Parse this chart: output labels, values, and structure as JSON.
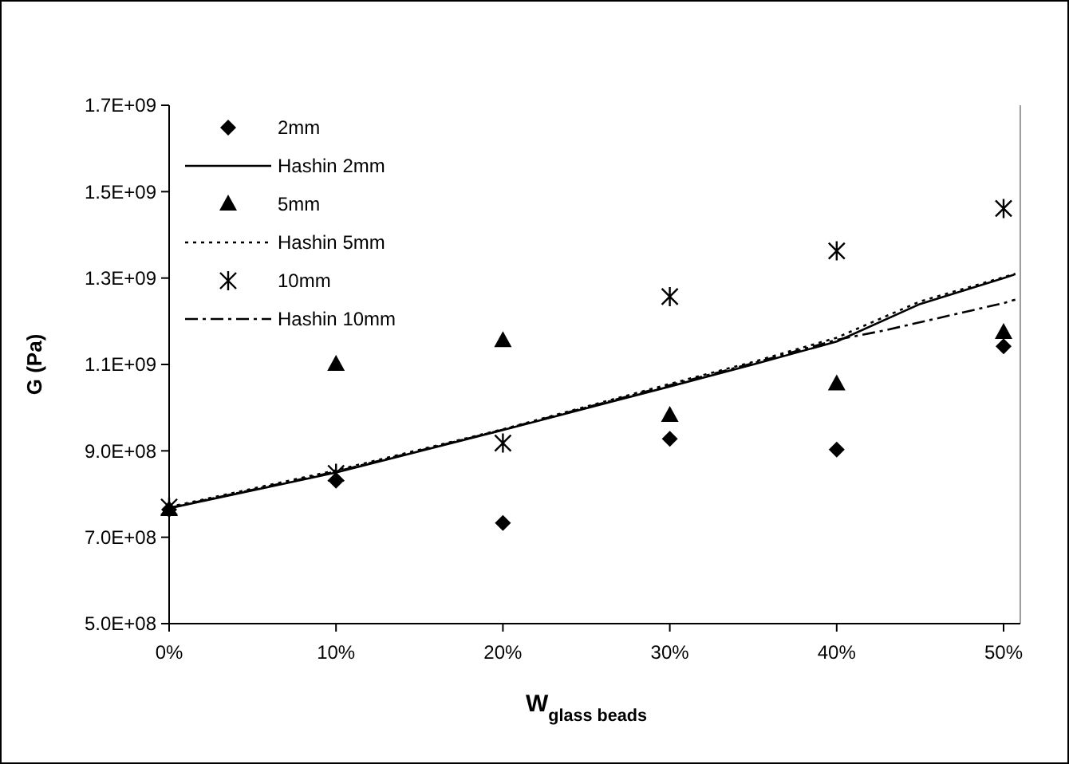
{
  "chart_data": {
    "type": "scatter",
    "xlabel": "W$_{glass beads}$",
    "ylabel": "G (Pa)",
    "xlim": [
      0,
      51
    ],
    "xticks": [
      {
        "value": 0,
        "label": "0%"
      },
      {
        "value": 10,
        "label": "10%"
      },
      {
        "value": 20,
        "label": "20%"
      },
      {
        "value": 30,
        "label": "30%"
      },
      {
        "value": 40,
        "label": "40%"
      },
      {
        "value": 50,
        "label": "50%"
      }
    ],
    "ylim": [
      500000000,
      1700000000
    ],
    "yticks": [
      {
        "value": 500000000,
        "label": "5.0E+08"
      },
      {
        "value": 700000000,
        "label": "7.0E+08"
      },
      {
        "value": 900000000,
        "label": "9.0E+08"
      },
      {
        "value": 1100000000,
        "label": "1.1E+09"
      },
      {
        "value": 1300000000,
        "label": "1.3E+09"
      },
      {
        "value": 1500000000,
        "label": "1.5E+09"
      },
      {
        "value": 1700000000,
        "label": "1.7E+09"
      }
    ],
    "grid": false,
    "legend": "top left",
    "series": [
      {
        "name": "2mm",
        "marker": "diamond",
        "color": "#000000",
        "x": [
          0,
          10,
          20,
          30,
          40,
          50
        ],
        "values": [
          764000000,
          831000000,
          733000000,
          928000000,
          903000000,
          1142000000
        ]
      },
      {
        "name": "Hashin 2mm",
        "type": "line",
        "line_style": "solid",
        "color": "#000000",
        "x": [
          0,
          10,
          20,
          30,
          35,
          40,
          45,
          50,
          50.7
        ],
        "values": [
          767000000,
          850000000,
          948000000,
          1049000000,
          1100000000,
          1153000000,
          1240000000,
          1300000000,
          1309000000
        ]
      },
      {
        "name": "5mm",
        "marker": "triangle",
        "color": "#000000",
        "x": [
          0,
          10,
          20,
          30,
          40,
          50
        ],
        "values": [
          764000000,
          1100000000,
          1155000000,
          982000000,
          1055000000,
          1174000000
        ]
      },
      {
        "name": "Hashin 5mm",
        "type": "line",
        "line_style": "dotted",
        "color": "#000000",
        "x": [
          0,
          10,
          20,
          30,
          35,
          40,
          45,
          50,
          50.7
        ],
        "values": [
          770000000,
          855000000,
          950000000,
          1055000000,
          1106000000,
          1162000000,
          1246000000,
          1302000000,
          1310000000
        ]
      },
      {
        "name": "10mm",
        "marker": "cross",
        "color": "#000000",
        "x": [
          0,
          10,
          20,
          30,
          40,
          50
        ],
        "values": [
          770000000,
          848000000,
          918000000,
          1257000000,
          1363000000,
          1461000000
        ]
      },
      {
        "name": "Hashin 10mm",
        "type": "line",
        "line_style": "dashdot",
        "color": "#000000",
        "x": [
          0,
          10,
          20,
          30,
          35,
          40,
          43,
          50,
          50.7
        ],
        "values": [
          768000000,
          852000000,
          949000000,
          1052000000,
          1103000000,
          1157000000,
          1180000000,
          1242000000,
          1250000000
        ]
      }
    ]
  }
}
